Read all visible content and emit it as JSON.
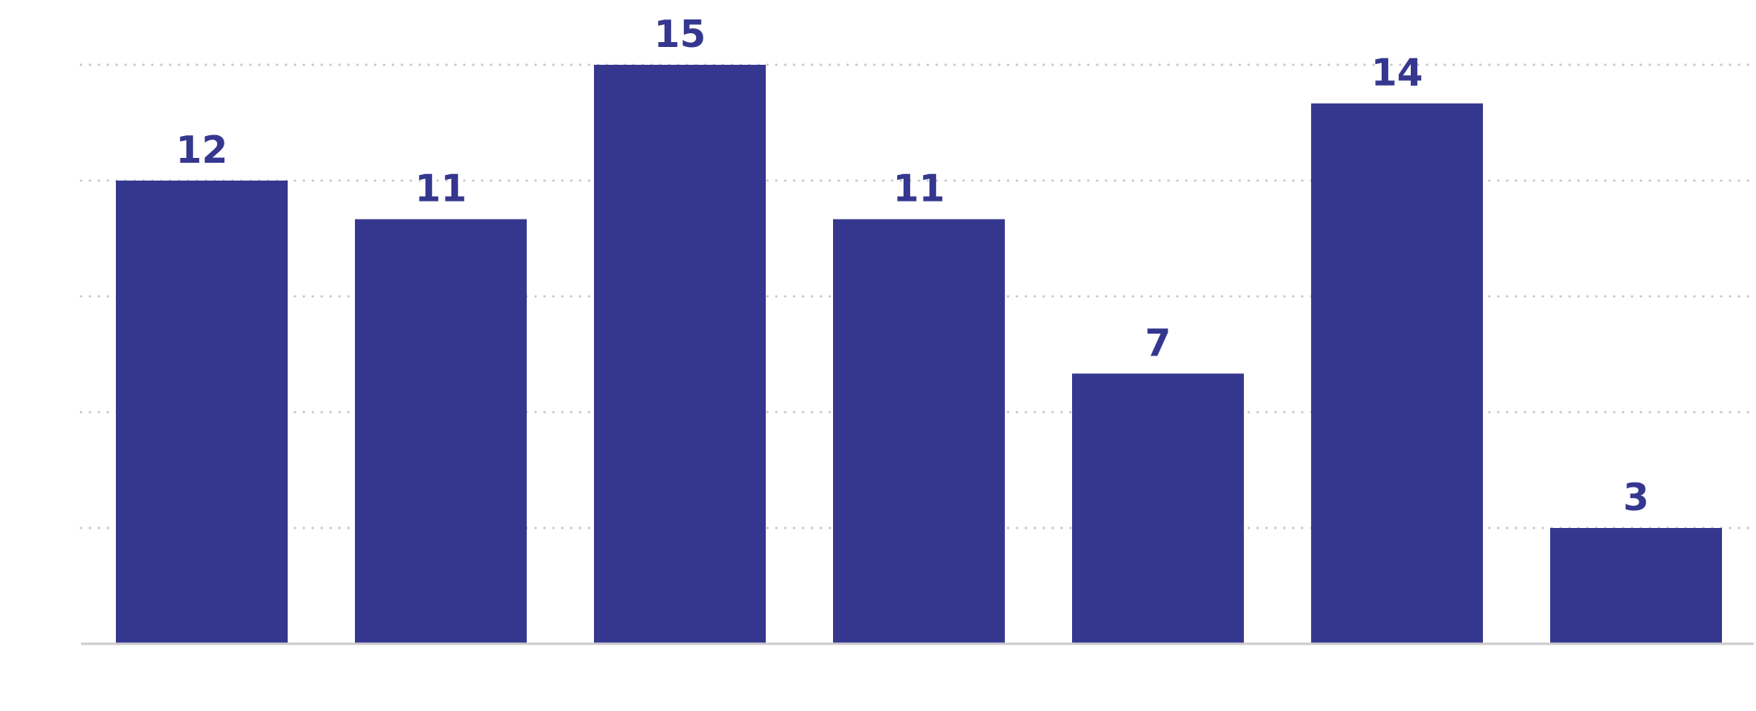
{
  "chart_data": {
    "type": "bar",
    "categories": [
      "",
      "",
      "",
      "",
      "",
      "",
      ""
    ],
    "values": [
      12,
      11,
      15,
      11,
      7,
      14,
      3
    ],
    "data_labels": [
      "12",
      "11",
      "15",
      "11",
      "7",
      "14",
      "3"
    ],
    "title": "",
    "xlabel": "",
    "ylabel": "",
    "ylim": [
      0,
      15
    ],
    "grid": true,
    "legend": "none",
    "colors": {
      "bar": "#35378f",
      "label": "#35378f",
      "grid": "#c8c8c8",
      "baseline": "#cccccc"
    }
  }
}
